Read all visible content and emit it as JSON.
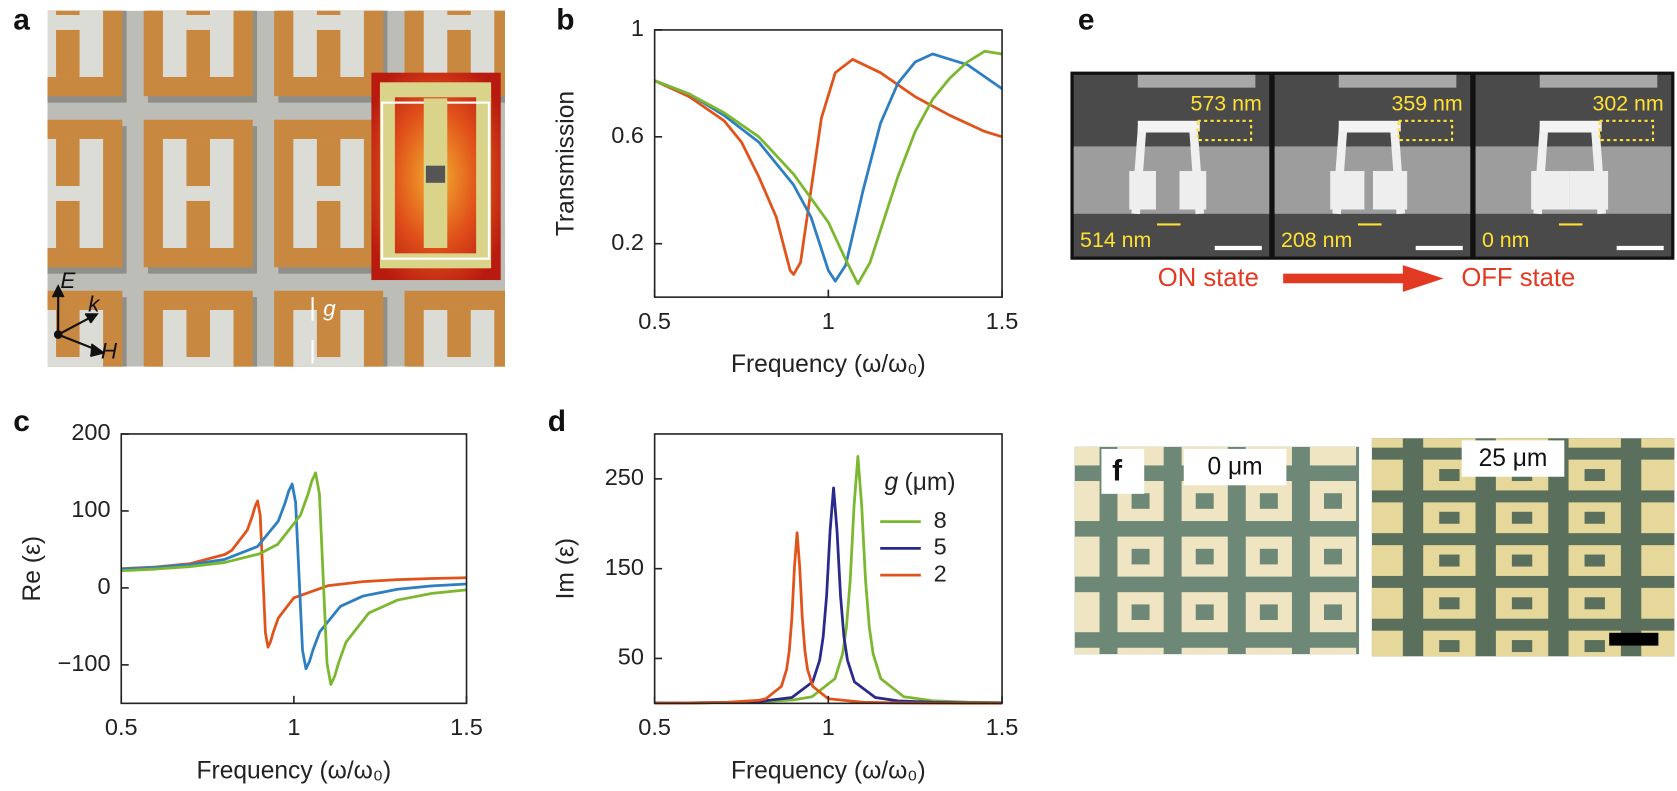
{
  "panels": {
    "a": {
      "label": "a",
      "e_field": "E",
      "k_vec": "k",
      "h_field": "H",
      "gap": "g"
    },
    "b": {
      "label": "b"
    },
    "c": {
      "label": "c"
    },
    "d": {
      "label": "d"
    },
    "e": {
      "label": "e",
      "top_dims": [
        "573 nm",
        "359 nm",
        "302 nm"
      ],
      "gap_dims": [
        "514 nm",
        "208 nm",
        "0 nm"
      ],
      "on_state": "ON state",
      "off_state": "OFF state"
    },
    "f": {
      "label": "f",
      "photo_labels": [
        "0 μm",
        "25 μm"
      ]
    }
  },
  "chart_data": [
    {
      "type": "line",
      "xlabel": "Frequency (ω/ω₀)",
      "ylabel": "Transmission",
      "xlim": [
        0.5,
        1.5
      ],
      "xticks": [
        0.5,
        1,
        1.5
      ],
      "ylim": [
        0,
        1
      ],
      "yticks": [
        0.2,
        0.6,
        1
      ],
      "series": [
        {
          "color": "#e0541c",
          "x": [
            0.5,
            0.6,
            0.7,
            0.75,
            0.8,
            0.85,
            0.87,
            0.89,
            0.9,
            0.92,
            0.95,
            0.98,
            1.02,
            1.07,
            1.15,
            1.25,
            1.35,
            1.45,
            1.5
          ],
          "values": [
            0.81,
            0.75,
            0.66,
            0.58,
            0.45,
            0.3,
            0.2,
            0.1,
            0.085,
            0.13,
            0.4,
            0.67,
            0.84,
            0.89,
            0.84,
            0.75,
            0.68,
            0.62,
            0.6
          ]
        },
        {
          "color": "#2e7fc2",
          "x": [
            0.5,
            0.6,
            0.7,
            0.8,
            0.9,
            0.95,
            0.98,
            1.0,
            1.02,
            1.05,
            1.1,
            1.15,
            1.2,
            1.25,
            1.3,
            1.4,
            1.5
          ],
          "values": [
            0.81,
            0.76,
            0.68,
            0.58,
            0.42,
            0.3,
            0.18,
            0.1,
            0.06,
            0.12,
            0.4,
            0.65,
            0.8,
            0.88,
            0.91,
            0.87,
            0.78
          ]
        },
        {
          "color": "#7cb82f",
          "x": [
            0.5,
            0.6,
            0.7,
            0.8,
            0.9,
            1.0,
            1.05,
            1.085,
            1.12,
            1.2,
            1.25,
            1.3,
            1.35,
            1.4,
            1.45,
            1.5
          ],
          "values": [
            0.81,
            0.76,
            0.69,
            0.6,
            0.46,
            0.28,
            0.14,
            0.05,
            0.13,
            0.45,
            0.62,
            0.74,
            0.82,
            0.88,
            0.92,
            0.91
          ]
        }
      ]
    },
    {
      "type": "line",
      "xlabel": "Frequency (ω/ω₀)",
      "ylabel": "Re (ε)",
      "xlim": [
        0.5,
        1.5
      ],
      "xticks": [
        0.5,
        1,
        1.5
      ],
      "ylim": [
        -150,
        200
      ],
      "yticks": [
        {
          "value": -100,
          "label": "−100"
        },
        0,
        100,
        200
      ],
      "series": [
        {
          "color": "#e0541c",
          "x": [
            0.5,
            0.6,
            0.7,
            0.8,
            0.82,
            0.865,
            0.88,
            0.8875,
            0.895,
            0.9025,
            0.91,
            0.9175,
            0.925,
            0.9325,
            0.94,
            0.955,
            1.0,
            1.1,
            1.2,
            1.3,
            1.4,
            1.5
          ],
          "values": [
            25,
            27.2,
            31.6,
            43.4,
            48.8,
            75,
            94,
            105.7,
            113,
            94,
            18,
            -58,
            -77,
            -69.7,
            -58,
            -39,
            -12.8,
            3,
            8.2,
            10.7,
            12.2,
            13.2
          ]
        },
        {
          "color": "#2e7fc2",
          "x": [
            0.5,
            0.6,
            0.7,
            0.8,
            0.895,
            0.955,
            0.975,
            0.985,
            0.995,
            1.005,
            1.015,
            1.025,
            1.035,
            1.045,
            1.055,
            1.075,
            1.135,
            1.2,
            1.3,
            1.4,
            1.5
          ],
          "values": [
            24.3,
            26.6,
            30.2,
            37.1,
            53.9,
            87,
            111,
            125.8,
            135,
            111,
            15,
            -81,
            -105,
            -95.8,
            -81,
            -57,
            -23.9,
            -10.6,
            -1.8,
            2.6,
            5.1
          ]
        },
        {
          "color": "#7cb82f",
          "x": [
            0.5,
            0.6,
            0.7,
            0.8,
            0.9,
            0.953,
            1.019,
            1.041,
            1.052,
            1.063,
            1.074,
            1.085,
            1.096,
            1.107,
            1.118,
            1.129,
            1.151,
            1.217,
            1.3,
            1.4,
            1.5
          ],
          "values": [
            22.3,
            24.5,
            27.7,
            33.1,
            44.2,
            56.6,
            94.5,
            122,
            138.9,
            149.5,
            122,
            12,
            -98,
            -125.5,
            -114.9,
            -98,
            -70.5,
            -32.6,
            -15.8,
            -7.1,
            -2.5
          ]
        }
      ]
    },
    {
      "type": "line",
      "xlabel": "Frequency (ω/ω₀)",
      "ylabel": "Im (ε)",
      "xlim": [
        0.5,
        1.5
      ],
      "xticks": [
        0.5,
        1,
        1.5
      ],
      "ylim": [
        0,
        300
      ],
      "yticks": [
        50,
        150,
        250
      ],
      "legend_title": {
        "symbol": "g",
        "unit": "(μm)"
      },
      "legend": "upper right",
      "series": [
        {
          "name": "8",
          "color": "#7cb82f",
          "x": [
            0.5,
            0.6,
            0.7,
            0.8,
            0.9,
            0.953,
            1.019,
            1.041,
            1.052,
            1.063,
            1.074,
            1.085,
            1.096,
            1.107,
            1.118,
            1.129,
            1.151,
            1.217,
            1.3,
            1.4,
            1.5
          ],
          "values": [
            0.39,
            0.57,
            0.9,
            1.63,
            3.83,
            7.4,
            27.5,
            55,
            84.6,
            137.5,
            220,
            275,
            220,
            137.5,
            84.6,
            55,
            27.5,
            7.4,
            2.85,
            1.33,
            0.77
          ]
        },
        {
          "name": "5",
          "color": "#2a2a8c",
          "x": [
            0.5,
            0.6,
            0.7,
            0.8,
            0.895,
            0.955,
            0.975,
            0.985,
            0.995,
            1.005,
            1.015,
            1.025,
            1.035,
            1.045,
            1.055,
            1.075,
            1.135,
            1.2,
            1.3,
            1.4,
            1.5
          ],
          "values": [
            0.36,
            0.56,
            0.96,
            2.06,
            6.5,
            24,
            48,
            73.8,
            120,
            192,
            240,
            192,
            120,
            73.8,
            48,
            24,
            6.5,
            2.77,
            1.18,
            0.65,
            0.41
          ]
        },
        {
          "name": "2",
          "color": "#e0541c",
          "x": [
            0.5,
            0.6,
            0.7,
            0.8,
            0.82,
            0.865,
            0.88,
            0.8875,
            0.895,
            0.9025,
            0.91,
            0.9175,
            0.925,
            0.9325,
            0.94,
            0.955,
            1.0,
            1.1,
            1.2,
            1.3,
            1.4,
            1.5
          ],
          "values": [
            0.25,
            0.45,
            0.97,
            3.47,
            5.1,
            19,
            38,
            58.5,
            95,
            152,
            190,
            152,
            95,
            58.5,
            38,
            19,
            5.1,
            1.18,
            0.51,
            0.28,
            0.18,
            0.12
          ]
        }
      ]
    }
  ]
}
